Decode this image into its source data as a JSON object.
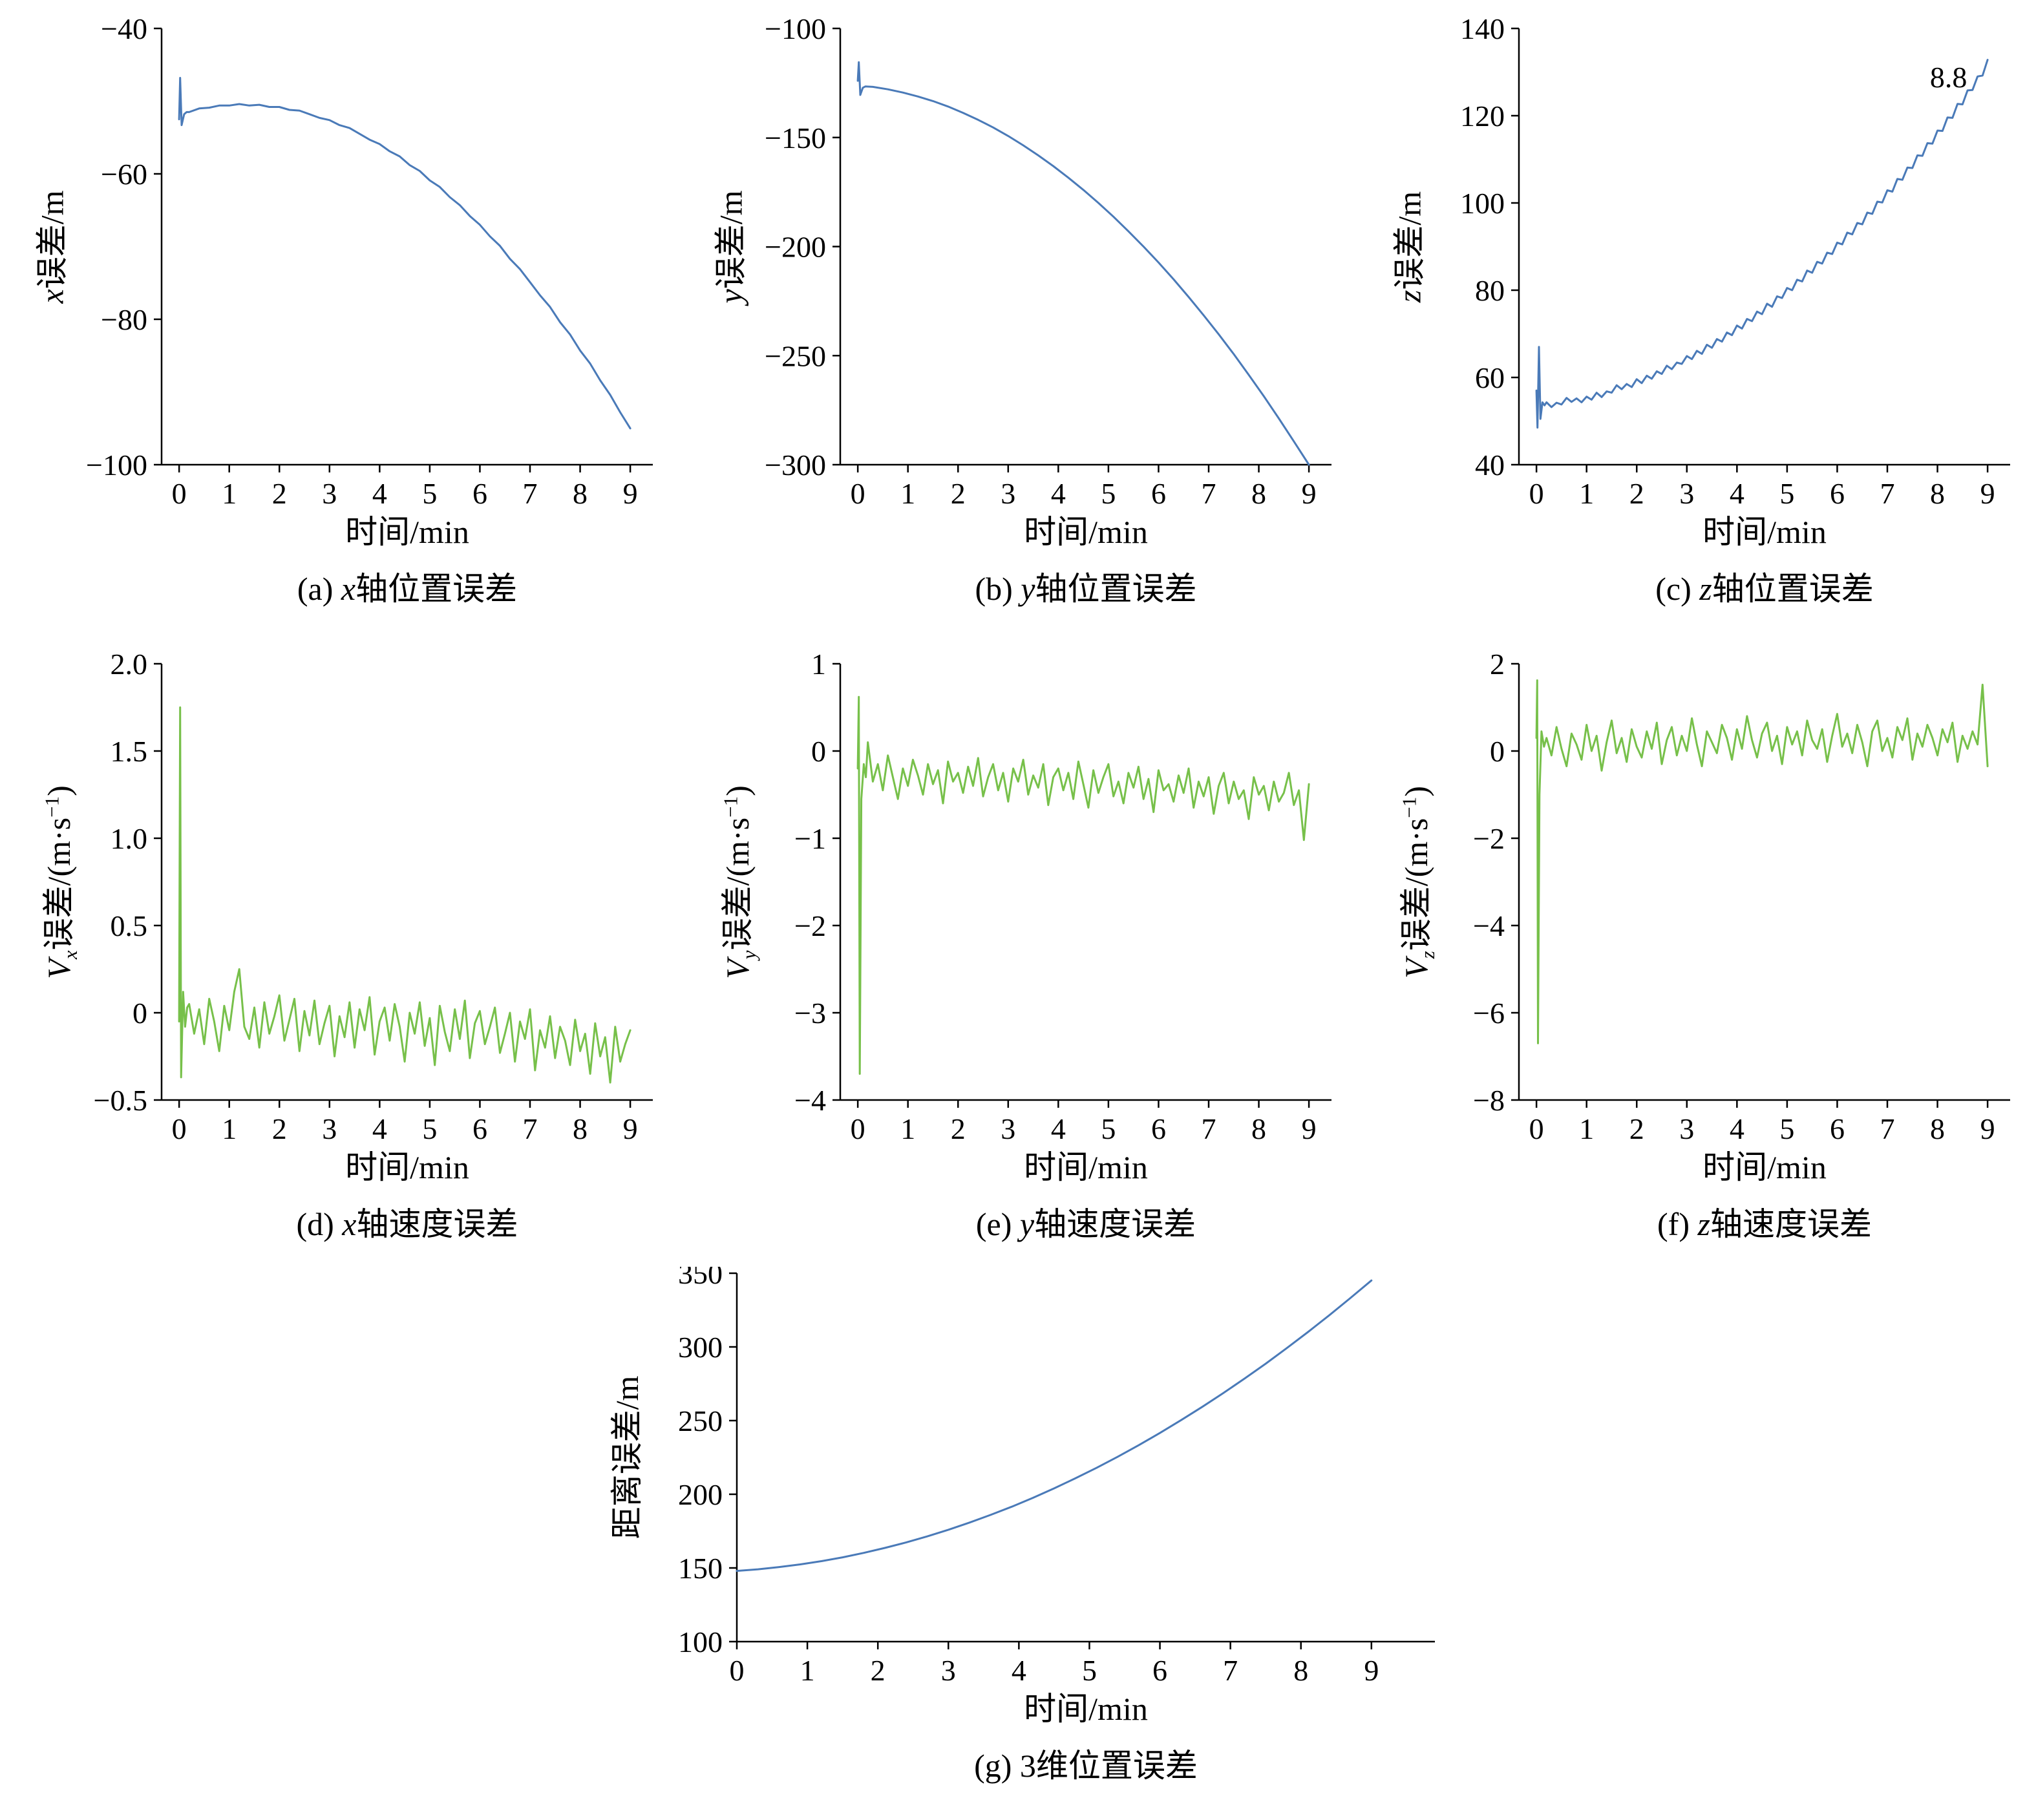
{
  "figure": {
    "xlabel": "时间/min",
    "colors": {
      "position_line": "#4a7ab8",
      "velocity_line": "#77c04a"
    }
  },
  "chart_data": [
    {
      "id": "a",
      "type": "line",
      "caption": "(a) x轴位置误差",
      "caption_runs": [
        {
          "t": "(a) ",
          "s": "n"
        },
        {
          "t": "x",
          "s": "i"
        },
        {
          "t": "轴位置误差",
          "s": "n"
        }
      ],
      "xlabel": "时间/min",
      "ylabel": "x误差/m",
      "ylabel_runs": [
        {
          "t": "x",
          "s": "i"
        },
        {
          "t": "误差/m",
          "s": "n"
        }
      ],
      "color": "#4a7ab8",
      "xlim": [
        -0.35,
        9.45
      ],
      "ylim": [
        -100,
        -40
      ],
      "xtick_values": [
        0,
        1,
        2,
        3,
        4,
        5,
        6,
        7,
        8,
        9
      ],
      "xtick_labels": [
        "0",
        "1",
        "2",
        "3",
        "4",
        "5",
        "6",
        "7",
        "8",
        "9"
      ],
      "ytick_values": [
        -100,
        -80,
        -60,
        -40
      ],
      "ytick_labels": [
        "−100",
        "−80",
        "−60",
        "−40"
      ],
      "series": {
        "pre": [
          [
            0,
            -52.5
          ],
          [
            0.02,
            -46.8
          ],
          [
            0.05,
            -53.3
          ],
          [
            0.1,
            -51.8
          ],
          [
            0.15,
            -51.5
          ]
        ],
        "x0": 0.2,
        "dx": 0.2,
        "y": [
          -51.5,
          -51.0,
          -50.9,
          -50.6,
          -50.6,
          -50.4,
          -50.6,
          -50.5,
          -50.8,
          -50.8,
          -51.2,
          -51.3,
          -51.8,
          -52.3,
          -52.6,
          -53.3,
          -53.7,
          -54.5,
          -55.3,
          -55.9,
          -56.9,
          -57.6,
          -58.8,
          -59.6,
          -60.9,
          -61.8,
          -63.2,
          -64.3,
          -65.8,
          -67.0,
          -68.6,
          -69.9,
          -71.7,
          -73.1,
          -74.9,
          -76.7,
          -78.3,
          -80.4,
          -82.1,
          -84.3,
          -86.1,
          -88.4,
          -90.4,
          -92.8,
          -95.0
        ]
      }
    },
    {
      "id": "b",
      "type": "line",
      "caption": "(b) y轴位置误差",
      "caption_runs": [
        {
          "t": "(b) ",
          "s": "n"
        },
        {
          "t": "y",
          "s": "i"
        },
        {
          "t": "轴位置误差",
          "s": "n"
        }
      ],
      "xlabel": "时间/min",
      "ylabel": "y误差/m",
      "ylabel_runs": [
        {
          "t": "y",
          "s": "i"
        },
        {
          "t": "误差/m",
          "s": "n"
        }
      ],
      "color": "#4a7ab8",
      "xlim": [
        -0.35,
        9.45
      ],
      "ylim": [
        -300,
        -100
      ],
      "xtick_values": [
        0,
        1,
        2,
        3,
        4,
        5,
        6,
        7,
        8,
        9
      ],
      "xtick_labels": [
        "0",
        "1",
        "2",
        "3",
        "4",
        "5",
        "6",
        "7",
        "8",
        "9"
      ],
      "ytick_values": [
        -300,
        -250,
        -200,
        -150,
        -100
      ],
      "ytick_labels": [
        "−300",
        "−250",
        "−200",
        "−150",
        "−100"
      ],
      "series": {
        "pre": [
          [
            0,
            -124.0
          ],
          [
            0.02,
            -115.5
          ],
          [
            0.05,
            -130.5
          ],
          [
            0.1,
            -127.2
          ],
          [
            0.15,
            -126.6
          ]
        ],
        "x0": 0.3,
        "dx": 0.3,
        "y": [
          -126.8,
          -127.9,
          -129.4,
          -131.2,
          -133.3,
          -135.8,
          -138.7,
          -141.9,
          -145.4,
          -149.3,
          -153.6,
          -158.2,
          -163.1,
          -168.4,
          -174.0,
          -180.0,
          -186.3,
          -193.0,
          -200.0,
          -207.3,
          -215.0,
          -223.1,
          -231.5,
          -240.2,
          -249.3,
          -258.8,
          -268.6,
          -278.8,
          -289.3,
          -300.0
        ]
      }
    },
    {
      "id": "c",
      "type": "line",
      "caption": "(c) z轴位置误差",
      "caption_runs": [
        {
          "t": "(c) ",
          "s": "n"
        },
        {
          "t": "z",
          "s": "i"
        },
        {
          "t": "轴位置误差",
          "s": "n"
        }
      ],
      "xlabel": "时间/min",
      "ylabel": "z误差/m",
      "ylabel_runs": [
        {
          "t": "z",
          "s": "i"
        },
        {
          "t": "误差/m",
          "s": "n"
        }
      ],
      "color": "#4a7ab8",
      "xlim": [
        -0.35,
        9.45
      ],
      "ylim": [
        40,
        140
      ],
      "xtick_values": [
        0,
        1,
        2,
        3,
        4,
        5,
        6,
        7,
        8,
        9
      ],
      "xtick_labels": [
        "0",
        "1",
        "2",
        "3",
        "4",
        "5",
        "6",
        "7",
        "8",
        "9"
      ],
      "ytick_values": [
        40,
        60,
        80,
        100,
        120,
        140
      ],
      "ytick_labels": [
        "40",
        "60",
        "80",
        "100",
        "120",
        "140"
      ],
      "annotation": {
        "text": "8.8",
        "x": 7.85,
        "y": 126.5
      },
      "series": {
        "pre": [
          [
            0,
            57.0
          ],
          [
            0.02,
            48.5
          ],
          [
            0.05,
            67.0
          ],
          [
            0.08,
            50.5
          ],
          [
            0.12,
            54.3
          ],
          [
            0.16,
            53.6
          ]
        ],
        "x0": 0.2,
        "dx": 0.1,
        "y": [
          54.3,
          53.2,
          54.2,
          53.8,
          55.3,
          54.4,
          55.2,
          54.3,
          55.6,
          54.9,
          56.5,
          55.5,
          56.8,
          56.5,
          58.2,
          57.3,
          58.5,
          57.8,
          59.6,
          58.7,
          60.4,
          59.7,
          61.4,
          60.8,
          62.7,
          61.9,
          63.4,
          63.1,
          64.9,
          64.2,
          66.1,
          65.4,
          67.5,
          66.8,
          68.8,
          68.2,
          70.3,
          69.7,
          71.9,
          71.2,
          73.4,
          72.9,
          75.1,
          74.5,
          76.9,
          76.2,
          78.6,
          78.2,
          80.5,
          80.0,
          82.4,
          82.0,
          84.5,
          84.0,
          86.5,
          86.1,
          88.6,
          88.3,
          90.9,
          90.5,
          93.2,
          92.8,
          95.4,
          95.1,
          97.8,
          97.5,
          100.3,
          100.1,
          102.9,
          102.6,
          105.5,
          105.3,
          108.1,
          108.0,
          110.9,
          110.8,
          113.7,
          113.6,
          116.6,
          116.5,
          119.6,
          119.5,
          122.7,
          122.6,
          125.8,
          125.9,
          129.0,
          129.2,
          132.8
        ]
      }
    },
    {
      "id": "d",
      "type": "line",
      "caption": "(d) x轴速度误差",
      "caption_runs": [
        {
          "t": "(d) ",
          "s": "n"
        },
        {
          "t": "x",
          "s": "i"
        },
        {
          "t": "轴速度误差",
          "s": "n"
        }
      ],
      "xlabel": "时间/min",
      "ylabel": "V_x误差/(m·s⁻¹)",
      "ylabel_runs": [
        {
          "t": "V",
          "s": "i"
        },
        {
          "t": "x",
          "s": "sub"
        },
        {
          "t": "误差/(m·s",
          "s": "n"
        },
        {
          "t": "−1",
          "s": "sup"
        },
        {
          "t": ")",
          "s": "n"
        }
      ],
      "color": "#77c04a",
      "xlim": [
        -0.35,
        9.45
      ],
      "ylim": [
        -0.5,
        2.0
      ],
      "xtick_values": [
        0,
        1,
        2,
        3,
        4,
        5,
        6,
        7,
        8,
        9
      ],
      "xtick_labels": [
        "0",
        "1",
        "2",
        "3",
        "4",
        "5",
        "6",
        "7",
        "8",
        "9"
      ],
      "ytick_values": [
        -0.5,
        0,
        0.5,
        1.0,
        1.5,
        2.0
      ],
      "ytick_labels": [
        "−0.5",
        "0",
        "0.5",
        "1.0",
        "1.5",
        "2.0"
      ],
      "series": {
        "pre": [
          [
            0,
            -0.05
          ],
          [
            0.02,
            1.75
          ],
          [
            0.04,
            -0.37
          ],
          [
            0.08,
            0.12
          ],
          [
            0.12,
            -0.08
          ],
          [
            0.16,
            0.03
          ]
        ],
        "x0": 0.2,
        "dx": 0.1,
        "y": [
          0.05,
          -0.12,
          0.02,
          -0.18,
          0.08,
          -0.05,
          -0.22,
          0.04,
          -0.1,
          0.12,
          0.25,
          -0.08,
          -0.15,
          0.03,
          -0.2,
          0.06,
          -0.12,
          -0.02,
          0.1,
          -0.16,
          -0.04,
          0.08,
          -0.22,
          0.01,
          -0.13,
          0.07,
          -0.18,
          -0.06,
          0.04,
          -0.25,
          -0.02,
          -0.14,
          0.06,
          -0.2,
          0.02,
          -0.1,
          0.09,
          -0.24,
          -0.05,
          0.03,
          -0.16,
          0.05,
          -0.08,
          -0.28,
          0.0,
          -0.12,
          0.06,
          -0.19,
          -0.03,
          -0.3,
          0.04,
          -0.11,
          -0.22,
          0.02,
          -0.15,
          0.07,
          -0.26,
          -0.06,
          0.01,
          -0.18,
          -0.08,
          0.03,
          -0.23,
          -0.12,
          0.0,
          -0.28,
          -0.05,
          -0.15,
          0.02,
          -0.33,
          -0.1,
          -0.2,
          -0.02,
          -0.26,
          -0.08,
          -0.16,
          -0.3,
          -0.04,
          -0.22,
          -0.12,
          -0.35,
          -0.06,
          -0.25,
          -0.14,
          -0.4,
          -0.08,
          -0.28,
          -0.18,
          -0.1
        ]
      }
    },
    {
      "id": "e",
      "type": "line",
      "caption": "(e) y轴速度误差",
      "caption_runs": [
        {
          "t": "(e) ",
          "s": "n"
        },
        {
          "t": "y",
          "s": "i"
        },
        {
          "t": "轴速度误差",
          "s": "n"
        }
      ],
      "xlabel": "时间/min",
      "ylabel": "V_y误差/(m·s⁻¹)",
      "ylabel_runs": [
        {
          "t": "V",
          "s": "i"
        },
        {
          "t": "y",
          "s": "sub"
        },
        {
          "t": "误差/(m·s",
          "s": "n"
        },
        {
          "t": "−1",
          "s": "sup"
        },
        {
          "t": ")",
          "s": "n"
        }
      ],
      "color": "#77c04a",
      "xlim": [
        -0.35,
        9.45
      ],
      "ylim": [
        -4,
        1
      ],
      "xtick_values": [
        0,
        1,
        2,
        3,
        4,
        5,
        6,
        7,
        8,
        9
      ],
      "xtick_labels": [
        "0",
        "1",
        "2",
        "3",
        "4",
        "5",
        "6",
        "7",
        "8",
        "9"
      ],
      "ytick_values": [
        -4,
        -3,
        -2,
        -1,
        0,
        1
      ],
      "ytick_labels": [
        "−4",
        "−3",
        "−2",
        "−1",
        "0",
        "1"
      ],
      "series": {
        "pre": [
          [
            0,
            -0.2
          ],
          [
            0.02,
            0.62
          ],
          [
            0.04,
            -3.7
          ],
          [
            0.07,
            -0.55
          ],
          [
            0.12,
            -0.15
          ],
          [
            0.16,
            -0.3
          ]
        ],
        "x0": 0.2,
        "dx": 0.1,
        "y": [
          0.1,
          -0.35,
          -0.15,
          -0.45,
          -0.05,
          -0.3,
          -0.55,
          -0.2,
          -0.4,
          -0.1,
          -0.28,
          -0.5,
          -0.15,
          -0.38,
          -0.22,
          -0.6,
          -0.12,
          -0.35,
          -0.25,
          -0.48,
          -0.18,
          -0.4,
          -0.08,
          -0.52,
          -0.3,
          -0.15,
          -0.45,
          -0.25,
          -0.58,
          -0.2,
          -0.35,
          -0.1,
          -0.5,
          -0.28,
          -0.42,
          -0.15,
          -0.62,
          -0.3,
          -0.2,
          -0.45,
          -0.25,
          -0.55,
          -0.12,
          -0.38,
          -0.65,
          -0.22,
          -0.48,
          -0.3,
          -0.15,
          -0.52,
          -0.35,
          -0.6,
          -0.25,
          -0.42,
          -0.18,
          -0.55,
          -0.32,
          -0.7,
          -0.22,
          -0.45,
          -0.38,
          -0.58,
          -0.28,
          -0.48,
          -0.2,
          -0.65,
          -0.35,
          -0.52,
          -0.3,
          -0.72,
          -0.4,
          -0.25,
          -0.6,
          -0.35,
          -0.55,
          -0.45,
          -0.78,
          -0.3,
          -0.5,
          -0.4,
          -0.68,
          -0.35,
          -0.58,
          -0.48,
          -0.25,
          -0.62,
          -0.45,
          -1.02,
          -0.38
        ]
      }
    },
    {
      "id": "f",
      "type": "line",
      "caption": "(f) z轴速度误差",
      "caption_runs": [
        {
          "t": "(f) ",
          "s": "n"
        },
        {
          "t": "z",
          "s": "i"
        },
        {
          "t": "轴速度误差",
          "s": "n"
        }
      ],
      "xlabel": "时间/min",
      "ylabel": "V_z误差/(m·s⁻¹)",
      "ylabel_runs": [
        {
          "t": "V",
          "s": "i"
        },
        {
          "t": "z",
          "s": "sub"
        },
        {
          "t": "误差/(m·s",
          "s": "n"
        },
        {
          "t": "−1",
          "s": "sup"
        },
        {
          "t": ")",
          "s": "n"
        }
      ],
      "color": "#77c04a",
      "xlim": [
        -0.35,
        9.45
      ],
      "ylim": [
        -8,
        2
      ],
      "xtick_values": [
        0,
        1,
        2,
        3,
        4,
        5,
        6,
        7,
        8,
        9
      ],
      "xtick_labels": [
        "0",
        "1",
        "2",
        "3",
        "4",
        "5",
        "6",
        "7",
        "8",
        "9"
      ],
      "ytick_values": [
        -8,
        -6,
        -4,
        -2,
        0,
        2
      ],
      "ytick_labels": [
        "−8",
        "−6",
        "−4",
        "−2",
        "0",
        "2"
      ],
      "series": {
        "pre": [
          [
            0,
            0.3
          ],
          [
            0.015,
            1.62
          ],
          [
            0.03,
            -6.7
          ],
          [
            0.06,
            -1.0
          ],
          [
            0.1,
            0.45
          ],
          [
            0.15,
            0.1
          ]
        ],
        "x0": 0.2,
        "dx": 0.1,
        "y": [
          0.3,
          -0.1,
          0.55,
          0.05,
          -0.35,
          0.4,
          0.15,
          -0.2,
          0.6,
          0.0,
          0.35,
          -0.45,
          0.2,
          0.7,
          -0.05,
          0.3,
          -0.25,
          0.5,
          0.1,
          -0.15,
          0.45,
          0.05,
          0.65,
          -0.3,
          0.25,
          0.55,
          -0.1,
          0.35,
          0.0,
          0.75,
          0.15,
          -0.35,
          0.45,
          0.2,
          -0.05,
          0.6,
          0.3,
          -0.2,
          0.5,
          0.05,
          0.8,
          0.25,
          -0.15,
          0.4,
          0.65,
          0.0,
          0.35,
          -0.3,
          0.55,
          0.15,
          0.45,
          -0.1,
          0.7,
          0.25,
          0.05,
          0.5,
          -0.25,
          0.35,
          0.85,
          0.1,
          0.4,
          -0.05,
          0.6,
          0.2,
          -0.35,
          0.45,
          0.7,
          0.0,
          0.3,
          -0.15,
          0.55,
          0.25,
          0.75,
          -0.2,
          0.4,
          0.1,
          0.6,
          0.3,
          -0.1,
          0.5,
          0.2,
          0.65,
          -0.25,
          0.35,
          0.05,
          0.45,
          0.15,
          1.52,
          -0.35
        ]
      }
    },
    {
      "id": "g",
      "type": "line",
      "caption": "(g) 3维位置误差",
      "caption_runs": [
        {
          "t": "(g) 3维位置误差",
          "s": "n"
        }
      ],
      "xlabel": "时间/min",
      "ylabel": "距离误差/m",
      "ylabel_runs": [
        {
          "t": "距离误差/m",
          "s": "n"
        }
      ],
      "color": "#4a7ab8",
      "xlim": [
        0,
        9.9
      ],
      "ylim": [
        100,
        350
      ],
      "xtick_values": [
        0,
        1,
        2,
        3,
        4,
        5,
        6,
        7,
        8,
        9
      ],
      "xtick_labels": [
        "0",
        "1",
        "2",
        "3",
        "4",
        "5",
        "6",
        "7",
        "8",
        "9"
      ],
      "ytick_values": [
        100,
        150,
        200,
        250,
        300,
        350
      ],
      "ytick_labels": [
        "100",
        "150",
        "200",
        "250",
        "300",
        "350"
      ],
      "series": {
        "pre": [],
        "x0": 0,
        "dx": 0.3,
        "y": [
          148.0,
          149.1,
          150.6,
          152.4,
          154.6,
          157.2,
          160.2,
          163.6,
          167.3,
          171.4,
          175.9,
          180.8,
          186.0,
          191.6,
          197.6,
          204.0,
          210.8,
          217.9,
          225.4,
          233.3,
          241.6,
          250.3,
          259.3,
          268.7,
          278.5,
          288.6,
          299.2,
          310.1,
          321.4,
          333.1,
          345.1
        ]
      }
    }
  ]
}
